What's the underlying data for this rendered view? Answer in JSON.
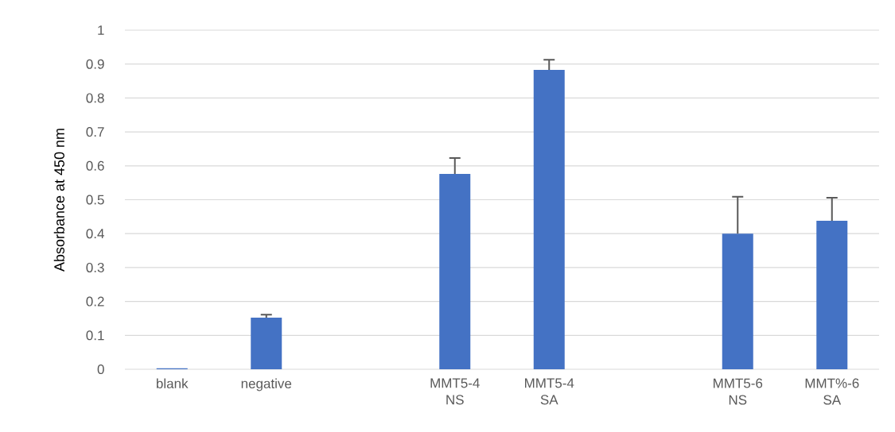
{
  "chart_data": {
    "type": "bar",
    "ylabel": "Absorbance at 450 nm",
    "categories": [
      "blank",
      "negative",
      null,
      "MMT5-4 NS",
      "MMT5-4 SA",
      null,
      "MMT5-6 NS",
      "MMT%-6 SA"
    ],
    "values": [
      0.003,
      0.152,
      null,
      0.576,
      0.883,
      null,
      0.4,
      0.438
    ],
    "errors": [
      null,
      [
        0.152,
        0.161
      ],
      null,
      [
        0.576,
        0.623
      ],
      [
        0.883,
        0.913
      ],
      null,
      [
        0.4,
        0.509
      ],
      [
        0.438,
        0.506
      ]
    ],
    "color": "#4472c4",
    "ylim": [
      0,
      1
    ],
    "yticks": [
      0,
      0.1,
      0.2,
      0.3,
      0.4,
      0.5,
      0.6,
      0.7,
      0.8,
      0.9,
      1
    ],
    "grid": "y"
  }
}
